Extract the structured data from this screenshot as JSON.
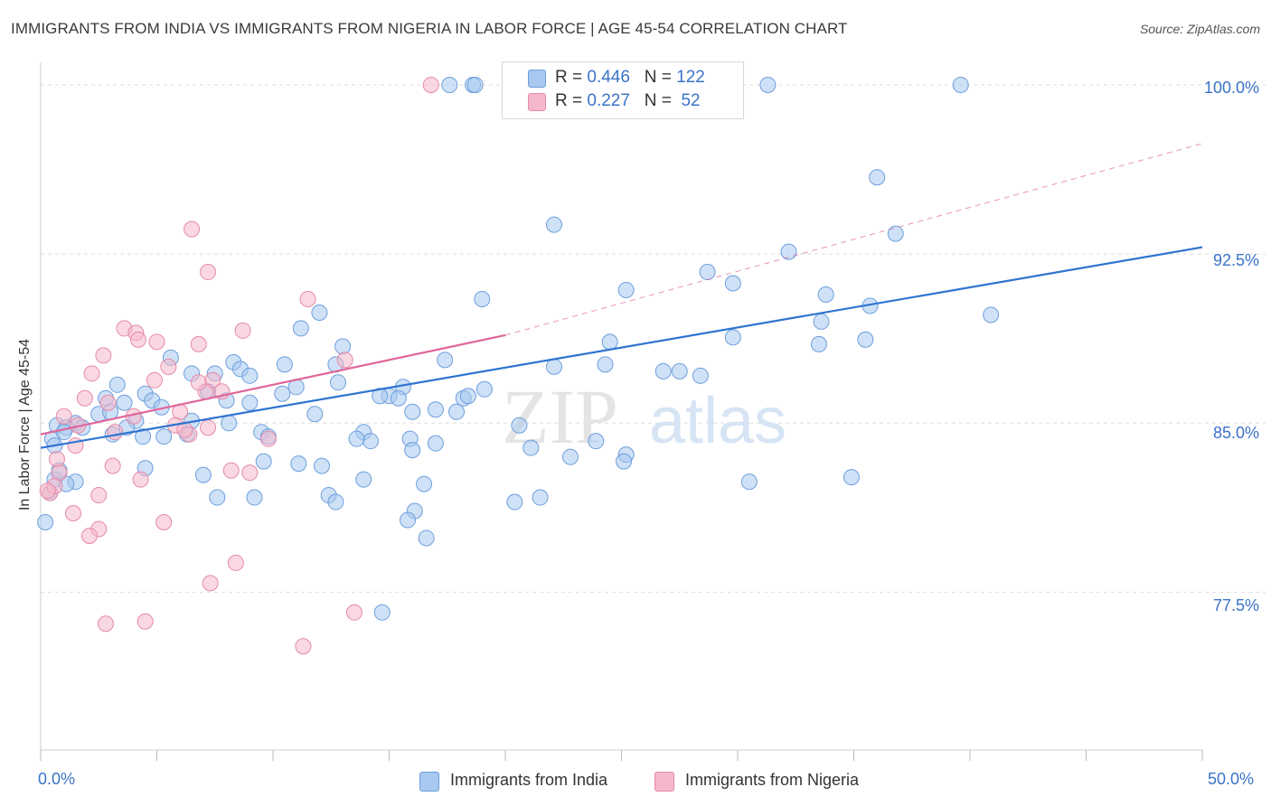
{
  "title": "IMMIGRANTS FROM INDIA VS IMMIGRANTS FROM NIGERIA IN LABOR FORCE | AGE 45-54 CORRELATION CHART",
  "source": "Source: ZipAtlas.com",
  "watermark": {
    "zip": "ZIP",
    "atlas": "atlas"
  },
  "legend_stats": {
    "india": {
      "r_label": "R =",
      "r_value": "0.446",
      "n_label": "N =",
      "n_value": "122"
    },
    "nigeria": {
      "r_label": "R =",
      "r_value": "0.227",
      "n_label": "N =",
      "n_value": "52"
    }
  },
  "colors": {
    "india_fill": "#a8c8f0",
    "india_stroke": "#6d9fdc",
    "india_line": "#2f74d0",
    "nigeria_fill": "#f5b8cb",
    "nigeria_stroke": "#e58aa8",
    "nigeria_line": "#e0679a",
    "tick_text": "#3a73c8",
    "grid": "#dddddd"
  },
  "chart_data": {
    "type": "scatter",
    "title": "IMMIGRANTS FROM INDIA VS IMMIGRANTS FROM NIGERIA IN LABOR FORCE | AGE 45-54 CORRELATION CHART",
    "xlabel": "",
    "ylabel": "In Labor Force | Age 45-54",
    "xlim": [
      0,
      50
    ],
    "ylim": [
      70.5,
      101
    ],
    "x_tick_labels": [
      "0.0%",
      "50.0%"
    ],
    "y_ticks": [
      77.5,
      85.0,
      92.5,
      100.0
    ],
    "y_tick_labels": [
      "77.5%",
      "85.0%",
      "92.5%",
      "100.0%"
    ],
    "grid": "horizontal dashed",
    "legend_placement": "bottom",
    "series": [
      {
        "name": "Immigrants from India",
        "points": [
          [
            17.6,
            100.0
          ],
          [
            18.6,
            100.0
          ],
          [
            18.7,
            100.0
          ],
          [
            31.3,
            100.0
          ],
          [
            39.6,
            100.0
          ],
          [
            36.0,
            95.9
          ],
          [
            22.1,
            93.8
          ],
          [
            36.8,
            93.4
          ],
          [
            32.2,
            92.6
          ],
          [
            28.7,
            91.7
          ],
          [
            29.8,
            91.2
          ],
          [
            25.2,
            90.9
          ],
          [
            33.8,
            90.7
          ],
          [
            35.7,
            90.2
          ],
          [
            19.0,
            90.5
          ],
          [
            12.0,
            89.9
          ],
          [
            40.9,
            89.8
          ],
          [
            11.2,
            89.2
          ],
          [
            33.6,
            89.5
          ],
          [
            13.0,
            88.4
          ],
          [
            24.5,
            88.6
          ],
          [
            29.8,
            88.8
          ],
          [
            33.5,
            88.5
          ],
          [
            35.5,
            88.7
          ],
          [
            5.6,
            87.9
          ],
          [
            8.3,
            87.7
          ],
          [
            10.5,
            87.6
          ],
          [
            12.7,
            87.6
          ],
          [
            17.4,
            87.8
          ],
          [
            22.1,
            87.5
          ],
          [
            8.6,
            87.4
          ],
          [
            24.3,
            87.6
          ],
          [
            26.8,
            87.3
          ],
          [
            27.5,
            87.3
          ],
          [
            28.4,
            87.1
          ],
          [
            6.5,
            87.2
          ],
          [
            7.5,
            87.2
          ],
          [
            9.0,
            87.1
          ],
          [
            12.8,
            86.8
          ],
          [
            15.6,
            86.6
          ],
          [
            7.2,
            86.4
          ],
          [
            11.0,
            86.6
          ],
          [
            3.3,
            86.7
          ],
          [
            4.5,
            86.3
          ],
          [
            10.4,
            86.3
          ],
          [
            15.0,
            86.2
          ],
          [
            15.4,
            86.1
          ],
          [
            8.0,
            86.0
          ],
          [
            2.8,
            86.1
          ],
          [
            4.8,
            86.0
          ],
          [
            3.6,
            85.9
          ],
          [
            5.2,
            85.7
          ],
          [
            9.0,
            85.9
          ],
          [
            14.6,
            86.2
          ],
          [
            18.2,
            86.1
          ],
          [
            18.4,
            86.2
          ],
          [
            19.1,
            86.5
          ],
          [
            17.0,
            85.6
          ],
          [
            16.0,
            85.5
          ],
          [
            17.9,
            85.5
          ],
          [
            11.8,
            85.4
          ],
          [
            2.5,
            85.4
          ],
          [
            3.0,
            85.5
          ],
          [
            4.1,
            85.1
          ],
          [
            6.5,
            85.1
          ],
          [
            8.1,
            85.0
          ],
          [
            20.6,
            84.9
          ],
          [
            1.5,
            85.0
          ],
          [
            0.7,
            84.9
          ],
          [
            1.1,
            84.8
          ],
          [
            1.8,
            84.8
          ],
          [
            9.5,
            84.6
          ],
          [
            9.8,
            84.4
          ],
          [
            13.9,
            84.6
          ],
          [
            14.2,
            84.2
          ],
          [
            13.6,
            84.3
          ],
          [
            15.9,
            84.3
          ],
          [
            17.0,
            84.1
          ],
          [
            4.4,
            84.4
          ],
          [
            6.3,
            84.5
          ],
          [
            23.9,
            84.2
          ],
          [
            21.1,
            83.9
          ],
          [
            16.0,
            83.8
          ],
          [
            3.1,
            84.5
          ],
          [
            5.3,
            84.4
          ],
          [
            0.5,
            84.3
          ],
          [
            1.0,
            84.6
          ],
          [
            0.6,
            84.0
          ],
          [
            22.8,
            83.5
          ],
          [
            25.2,
            83.6
          ],
          [
            25.1,
            83.3
          ],
          [
            9.6,
            83.3
          ],
          [
            11.1,
            83.2
          ],
          [
            12.1,
            83.1
          ],
          [
            4.5,
            83.0
          ],
          [
            7.0,
            82.7
          ],
          [
            0.6,
            82.5
          ],
          [
            1.5,
            82.4
          ],
          [
            13.9,
            82.5
          ],
          [
            16.5,
            82.3
          ],
          [
            30.5,
            82.4
          ],
          [
            34.9,
            82.6
          ],
          [
            21.5,
            81.7
          ],
          [
            20.4,
            81.5
          ],
          [
            12.4,
            81.8
          ],
          [
            12.7,
            81.5
          ],
          [
            9.2,
            81.7
          ],
          [
            16.1,
            81.1
          ],
          [
            15.8,
            80.7
          ],
          [
            16.6,
            79.9
          ],
          [
            0.2,
            80.6
          ],
          [
            14.7,
            76.6
          ],
          [
            1.1,
            82.3
          ],
          [
            0.8,
            82.9
          ],
          [
            7.6,
            81.7
          ],
          [
            0.4,
            81.9
          ],
          [
            3.7,
            84.8
          ]
        ]
      },
      {
        "name": "Immigrants from Nigeria",
        "points": [
          [
            16.8,
            100.0
          ],
          [
            6.5,
            93.6
          ],
          [
            7.2,
            91.7
          ],
          [
            11.5,
            90.5
          ],
          [
            3.6,
            89.2
          ],
          [
            4.1,
            89.0
          ],
          [
            8.7,
            89.1
          ],
          [
            4.2,
            88.7
          ],
          [
            5.0,
            88.6
          ],
          [
            6.8,
            88.5
          ],
          [
            2.7,
            88.0
          ],
          [
            13.1,
            87.8
          ],
          [
            2.2,
            87.2
          ],
          [
            5.5,
            87.5
          ],
          [
            4.9,
            86.9
          ],
          [
            7.4,
            86.9
          ],
          [
            7.8,
            86.4
          ],
          [
            7.1,
            86.4
          ],
          [
            1.9,
            86.1
          ],
          [
            2.9,
            85.9
          ],
          [
            6.0,
            85.5
          ],
          [
            4.0,
            85.3
          ],
          [
            1.0,
            85.3
          ],
          [
            5.8,
            84.9
          ],
          [
            7.2,
            84.8
          ],
          [
            1.6,
            84.9
          ],
          [
            3.2,
            84.6
          ],
          [
            6.4,
            84.5
          ],
          [
            9.8,
            84.3
          ],
          [
            1.5,
            84.0
          ],
          [
            0.7,
            83.4
          ],
          [
            3.1,
            83.1
          ],
          [
            8.2,
            82.9
          ],
          [
            0.8,
            82.8
          ],
          [
            9.0,
            82.8
          ],
          [
            4.3,
            82.5
          ],
          [
            2.5,
            81.8
          ],
          [
            0.4,
            81.9
          ],
          [
            1.4,
            81.0
          ],
          [
            5.3,
            80.6
          ],
          [
            2.5,
            80.3
          ],
          [
            2.1,
            80.0
          ],
          [
            0.6,
            82.2
          ],
          [
            8.4,
            78.8
          ],
          [
            7.3,
            77.9
          ],
          [
            13.5,
            76.6
          ],
          [
            2.8,
            76.1
          ],
          [
            4.5,
            76.2
          ],
          [
            11.3,
            75.1
          ],
          [
            6.8,
            86.8
          ],
          [
            0.3,
            82.0
          ],
          [
            6.2,
            84.7
          ]
        ]
      }
    ],
    "trendlines": [
      {
        "series": "Immigrants from India",
        "x": [
          0,
          50
        ],
        "y": [
          83.9,
          92.8
        ]
      },
      {
        "series": "Immigrants from Nigeria",
        "x": [
          0,
          20
        ],
        "y": [
          84.5,
          88.9
        ],
        "extended_dashed_to": [
          50,
          97.4
        ]
      }
    ]
  },
  "x_axis_labels": {
    "left": "0.0%",
    "right": "50.0%"
  }
}
